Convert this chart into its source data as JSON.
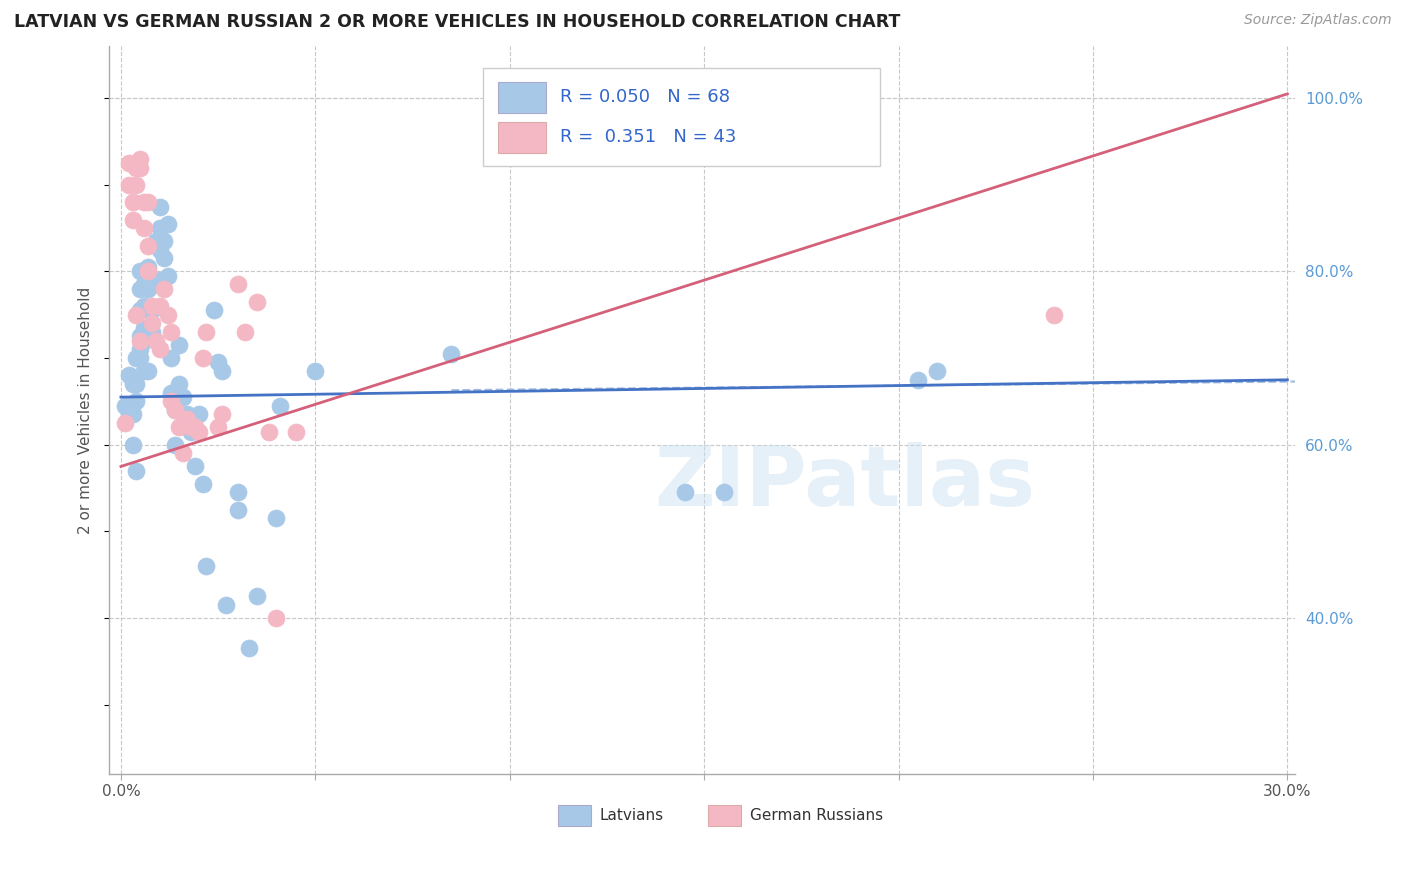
{
  "title": "LATVIAN VS GERMAN RUSSIAN 2 OR MORE VEHICLES IN HOUSEHOLD CORRELATION CHART",
  "source": "Source: ZipAtlas.com",
  "ylabel": "2 or more Vehicles in Household",
  "watermark": "ZIPatlas",
  "xlim": [
    -0.003,
    0.302
  ],
  "ylim": [
    0.22,
    1.06
  ],
  "x_ticks": [
    0.0,
    0.05,
    0.1,
    0.15,
    0.2,
    0.25,
    0.3
  ],
  "x_tick_labels": [
    "0.0%",
    "",
    "",
    "",
    "",
    "",
    "30.0%"
  ],
  "y_ticks_right": [
    0.4,
    0.6,
    0.8,
    1.0
  ],
  "y_tick_labels_right": [
    "40.0%",
    "60.0%",
    "80.0%",
    "100.0%"
  ],
  "latvian_color": "#a8c8e8",
  "latvian_color_line": "#4472c4",
  "german_russian_color": "#f4b8c4",
  "german_russian_color_line": "#d4607a",
  "legend_R1": "0.050",
  "legend_N1": "68",
  "legend_R2": "0.351",
  "legend_N2": "43",
  "latvians_label": "Latvians",
  "german_russians_label": "German Russians",
  "background_color": "#ffffff",
  "grid_color": "#c8c8c8",
  "latvian_x": [
    0.001,
    0.002,
    0.002,
    0.003,
    0.003,
    0.003,
    0.004,
    0.004,
    0.004,
    0.004,
    0.005,
    0.005,
    0.005,
    0.005,
    0.005,
    0.005,
    0.006,
    0.006,
    0.006,
    0.006,
    0.006,
    0.007,
    0.007,
    0.007,
    0.007,
    0.007,
    0.008,
    0.008,
    0.008,
    0.009,
    0.009,
    0.01,
    0.01,
    0.01,
    0.01,
    0.011,
    0.011,
    0.012,
    0.012,
    0.013,
    0.013,
    0.014,
    0.014,
    0.015,
    0.015,
    0.016,
    0.017,
    0.018,
    0.019,
    0.02,
    0.021,
    0.022,
    0.024,
    0.025,
    0.026,
    0.027,
    0.03,
    0.03,
    0.033,
    0.035,
    0.04,
    0.041,
    0.05,
    0.085,
    0.145,
    0.155,
    0.205,
    0.21
  ],
  "latvian_y": [
    0.645,
    0.635,
    0.68,
    0.67,
    0.635,
    0.6,
    0.7,
    0.67,
    0.65,
    0.57,
    0.8,
    0.78,
    0.755,
    0.725,
    0.71,
    0.7,
    0.785,
    0.76,
    0.735,
    0.72,
    0.685,
    0.805,
    0.78,
    0.755,
    0.73,
    0.685,
    0.785,
    0.755,
    0.73,
    0.835,
    0.785,
    0.875,
    0.85,
    0.825,
    0.79,
    0.835,
    0.815,
    0.855,
    0.795,
    0.7,
    0.66,
    0.64,
    0.6,
    0.715,
    0.67,
    0.655,
    0.635,
    0.615,
    0.575,
    0.635,
    0.555,
    0.46,
    0.755,
    0.695,
    0.685,
    0.415,
    0.545,
    0.525,
    0.365,
    0.425,
    0.515,
    0.645,
    0.685,
    0.705,
    0.545,
    0.545,
    0.675,
    0.685
  ],
  "german_russian_x": [
    0.001,
    0.002,
    0.002,
    0.003,
    0.003,
    0.004,
    0.004,
    0.004,
    0.005,
    0.005,
    0.005,
    0.006,
    0.006,
    0.007,
    0.007,
    0.007,
    0.008,
    0.008,
    0.009,
    0.01,
    0.01,
    0.011,
    0.012,
    0.013,
    0.013,
    0.014,
    0.015,
    0.016,
    0.017,
    0.018,
    0.019,
    0.02,
    0.021,
    0.022,
    0.025,
    0.026,
    0.03,
    0.032,
    0.035,
    0.038,
    0.04,
    0.045,
    0.24
  ],
  "german_russian_y": [
    0.625,
    0.925,
    0.9,
    0.88,
    0.86,
    0.92,
    0.9,
    0.75,
    0.93,
    0.92,
    0.72,
    0.88,
    0.85,
    0.88,
    0.83,
    0.8,
    0.76,
    0.74,
    0.72,
    0.76,
    0.71,
    0.78,
    0.75,
    0.73,
    0.65,
    0.64,
    0.62,
    0.59,
    0.63,
    0.62,
    0.62,
    0.615,
    0.7,
    0.73,
    0.62,
    0.635,
    0.785,
    0.73,
    0.765,
    0.615,
    0.4,
    0.615,
    0.75
  ],
  "latvian_trend": [
    0.0,
    0.655,
    0.3,
    0.675
  ],
  "german_russian_trend": [
    0.0,
    0.575,
    0.3,
    1.005
  ],
  "latvian_dash_trend": [
    0.085,
    0.663,
    0.302,
    0.673
  ]
}
